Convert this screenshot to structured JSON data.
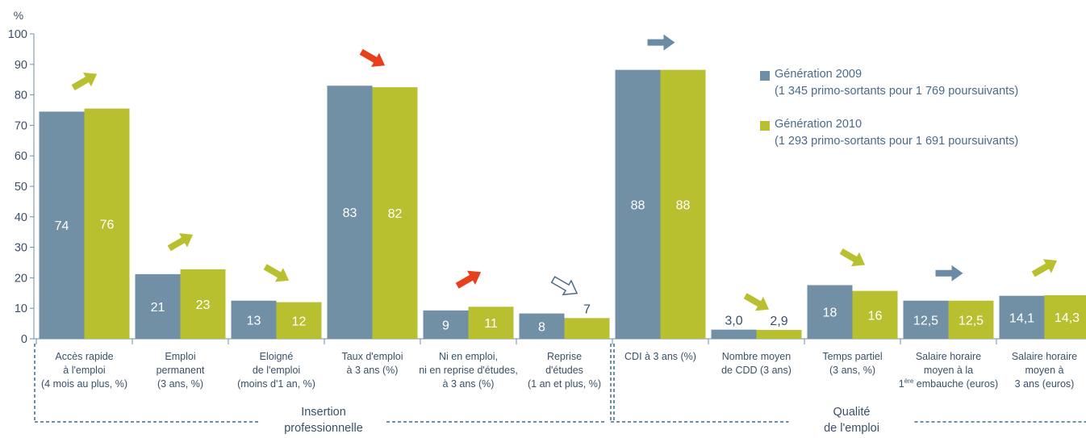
{
  "chart_data": {
    "type": "bar",
    "y_unit": "%",
    "ylim": [
      0,
      100
    ],
    "yticks": [
      "0",
      "10",
      "20",
      "30",
      "40",
      "50",
      "60",
      "70",
      "80",
      "90",
      "100"
    ],
    "categories": [
      [
        "Accès rapide",
        "à l'emploi",
        "(4 mois au plus, %)"
      ],
      [
        "Emploi",
        "permanent",
        "(3 ans, %)"
      ],
      [
        "Eloigné",
        "de l'emploi",
        "(moins d'1 an, %)"
      ],
      [
        "Taux d'emploi",
        "à 3 ans (%)"
      ],
      [
        "Ni en emploi,",
        "ni en reprise d'études,",
        "à 3 ans (%)"
      ],
      [
        "Reprise",
        "d'études",
        "(1 an et plus, %)"
      ],
      [
        "CDI à 3 ans (%)"
      ],
      [
        "Nombre moyen",
        "de CDD (3 ans)"
      ],
      [
        "Temps partiel",
        "(3 ans, %)"
      ],
      [
        "Salaire horaire",
        "moyen à la",
        "1ère embauche (euros)"
      ],
      [
        "Salaire horaire",
        "moyen à",
        "3 ans (euros)"
      ]
    ],
    "series": [
      {
        "name": "Génération 2009",
        "subtitle": "(1 345 primo-sortants pour 1 769 poursuivants)",
        "color": "#7190a6",
        "values": [
          74.5,
          21.2,
          12.5,
          83,
          9.3,
          8.3,
          88.2,
          3.0,
          17.6,
          12.5,
          14.1
        ],
        "labels": [
          "74",
          "21",
          "13",
          "83",
          "9",
          "8",
          "88",
          "3,0",
          "18",
          "12,5",
          "14,1"
        ]
      },
      {
        "name": "Génération 2010",
        "subtitle": "(1 293 primo-sortants pour 1 691 poursuivants)",
        "color": "#b8c030",
        "values": [
          75.5,
          22.8,
          12,
          82.5,
          10.5,
          6.8,
          88.2,
          2.9,
          15.7,
          12.5,
          14.3
        ],
        "labels": [
          "76",
          "23",
          "12",
          "82",
          "11",
          "7",
          "88",
          "2,9",
          "16",
          "12,5",
          "14,3"
        ]
      }
    ],
    "trend_arrows": [
      {
        "category": 0,
        "direction": "up",
        "color": "#b8c030",
        "style": "filled"
      },
      {
        "category": 1,
        "direction": "up",
        "color": "#b8c030",
        "style": "filled"
      },
      {
        "category": 2,
        "direction": "down",
        "color": "#b8c030",
        "style": "filled"
      },
      {
        "category": 3,
        "direction": "down",
        "color": "#e8401c",
        "style": "filled"
      },
      {
        "category": 4,
        "direction": "up",
        "color": "#e8401c",
        "style": "filled"
      },
      {
        "category": 5,
        "direction": "down",
        "color": "#4a6a8a",
        "style": "outline"
      },
      {
        "category": 6,
        "direction": "flat",
        "color": "#6a8aa5",
        "style": "filled"
      },
      {
        "category": 7,
        "direction": "down",
        "color": "#b8c030",
        "style": "filled"
      },
      {
        "category": 8,
        "direction": "down",
        "color": "#b8c030",
        "style": "filled"
      },
      {
        "category": 9,
        "direction": "flat",
        "color": "#6a8aa5",
        "style": "filled"
      },
      {
        "category": 10,
        "direction": "up",
        "color": "#b8c030",
        "style": "filled"
      }
    ],
    "groups": [
      {
        "label": [
          "Insertion",
          "professionnelle"
        ],
        "from": 0,
        "to": 5
      },
      {
        "label": [
          "Qualité",
          "de l'emploi"
        ],
        "from": 6,
        "to": 10
      }
    ],
    "legend_position": "top-right",
    "grid": false
  }
}
